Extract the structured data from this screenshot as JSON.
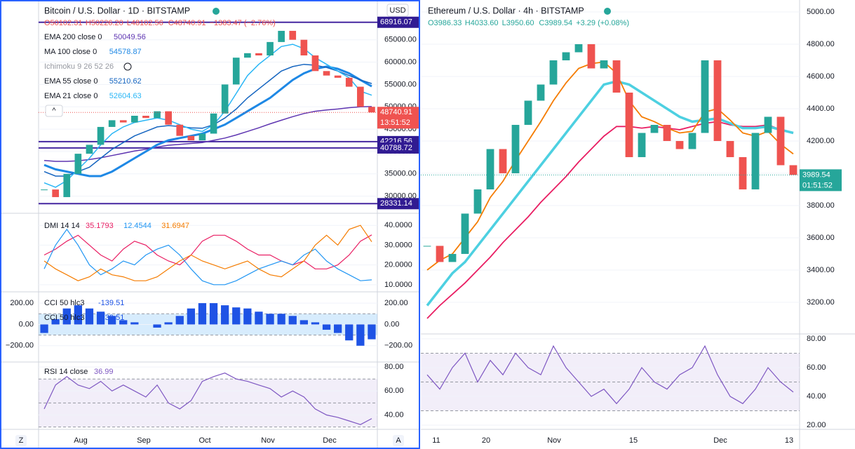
{
  "left": {
    "title": "Bitcoin / U.S. Dollar · 1D · BITSTAMP",
    "currency": "USD",
    "ohlc": [
      "O50102.31",
      "H50226.20",
      "L48102.56",
      "C48740.91",
      "−1383.47 (−2.76%)"
    ],
    "price": {
      "ylim": [
        26180,
        73900
      ],
      "yticks": [
        {
          "value": 30000,
          "label": "30000.00"
        },
        {
          "value": 35000,
          "label": "35000.00"
        },
        {
          "value": 40000,
          "label": "40000.00"
        },
        {
          "value": 45000,
          "label": "45000.00"
        },
        {
          "value": 50000,
          "label": "50000.00"
        },
        {
          "value": 55000,
          "label": "55000.00"
        },
        {
          "value": 60000,
          "label": "60000.00"
        },
        {
          "value": 65000,
          "label": "65000.00"
        }
      ],
      "close": [
        31500,
        29800,
        35000,
        39500,
        41500,
        45500,
        47000,
        46500,
        48000,
        47500,
        49000,
        46000,
        43500,
        42500,
        44000,
        48500,
        55000,
        61000,
        62000,
        61500,
        64500,
        67000,
        65000,
        61500,
        58000,
        57000,
        56500,
        54500,
        50000,
        48740.91
      ],
      "countdown": "13:51:52",
      "levels": [
        68916.07,
        42216.56,
        40788.72,
        28331.14
      ],
      "ichimoku": "Ichimoku 9 26 52 26",
      "series": [
        {
          "name": "EMA 200 close 0",
          "color": "#5e35b1",
          "values": [
            38000,
            37800,
            37800,
            37900,
            38200,
            38600,
            39100,
            39600,
            40100,
            40500,
            41000,
            41400,
            41600,
            41800,
            42000,
            42500,
            43000,
            43700,
            44500,
            45300,
            46200,
            47000,
            47800,
            48500,
            49000,
            49300,
            49500,
            49800,
            50000,
            50049.56
          ]
        },
        {
          "name": "MA 100 close 0",
          "color": "#1e88e5",
          "values": [
            37000,
            36000,
            35500,
            35000,
            34500,
            34500,
            35500,
            37000,
            38500,
            40000,
            41500,
            42500,
            43000,
            43500,
            44000,
            45000,
            46000,
            47500,
            49000,
            50500,
            52000,
            54000,
            56000,
            57500,
            58500,
            59000,
            58500,
            57500,
            56000,
            54578.87
          ]
        },
        {
          "name": "EMA 55 close 0",
          "color": "#1565c0",
          "values": [
            35500,
            34500,
            34500,
            35500,
            36500,
            38500,
            40500,
            42000,
            43500,
            44500,
            45500,
            45800,
            45600,
            45300,
            45200,
            46000,
            47500,
            49500,
            52000,
            54000,
            56000,
            58000,
            59000,
            59500,
            59300,
            58800,
            58000,
            57000,
            56000,
            55210.62
          ]
        },
        {
          "name": "EMA 21 close 0",
          "color": "#29b6f6",
          "values": [
            33000,
            32000,
            33500,
            36000,
            38500,
            41500,
            44000,
            45500,
            46500,
            47000,
            47500,
            47000,
            46000,
            45000,
            44500,
            46000,
            49000,
            53000,
            57000,
            59500,
            61500,
            63500,
            64000,
            63000,
            61000,
            59500,
            58000,
            56500,
            53500,
            52604.63
          ]
        }
      ]
    },
    "dmi": {
      "name": "DMI 14 14",
      "ylim": [
        6.4,
        45.4
      ],
      "yticks": [
        {
          "value": 10,
          "label": "10.0000"
        },
        {
          "value": 20,
          "label": "20.0000"
        },
        {
          "value": 30,
          "label": "30.0000"
        },
        {
          "value": 40,
          "label": "40.0000"
        }
      ],
      "series": [
        {
          "color": "#e91e63",
          "values": [
            25,
            28,
            32,
            35,
            30,
            25,
            22,
            28,
            32,
            30,
            25,
            22,
            20,
            25,
            32,
            35,
            35,
            32,
            28,
            25,
            25,
            22,
            20,
            22,
            18,
            18,
            20,
            25,
            32,
            35.1793
          ]
        },
        {
          "color": "#2196f3",
          "values": [
            18,
            30,
            38,
            30,
            20,
            15,
            18,
            22,
            20,
            25,
            28,
            30,
            25,
            18,
            12,
            10,
            10,
            12,
            15,
            18,
            20,
            22,
            20,
            25,
            28,
            22,
            18,
            15,
            12,
            12.4544
          ]
        },
        {
          "color": "#f57c00",
          "values": [
            22,
            18,
            15,
            12,
            14,
            18,
            15,
            14,
            12,
            12,
            14,
            18,
            22,
            25,
            22,
            20,
            18,
            20,
            22,
            18,
            15,
            14,
            18,
            22,
            30,
            35,
            30,
            38,
            40,
            31.6947
          ]
        }
      ]
    },
    "cci": {
      "name": "CCI 50 hlc3",
      "color": "#1e53e5",
      "ylim": [
        -353,
        293
      ],
      "levels": [
        100,
        -100
      ],
      "yticks": [
        {
          "value": 200,
          "label": "200.00"
        },
        {
          "value": 0,
          "label": "0.00"
        },
        {
          "value": -200,
          "label": "−200.00"
        }
      ],
      "values": [
        -80,
        50,
        150,
        180,
        150,
        120,
        80,
        40,
        20,
        0,
        -30,
        20,
        80,
        150,
        200,
        200,
        180,
        160,
        150,
        120,
        100,
        100,
        80,
        40,
        20,
        -50,
        -80,
        -150,
        -200,
        -139.51
      ]
    },
    "rsi": {
      "name": "RSI 14 close",
      "color": "#7e57c2",
      "ylim": [
        28,
        83
      ],
      "levels": [
        70,
        50,
        30
      ],
      "yticks": [
        {
          "value": 40,
          "label": "40.00"
        },
        {
          "value": 60,
          "label": "60.00"
        },
        {
          "value": 80,
          "label": "80.00"
        }
      ],
      "values": [
        45,
        65,
        72,
        65,
        62,
        68,
        60,
        65,
        60,
        55,
        65,
        50,
        45,
        52,
        68,
        72,
        75,
        70,
        68,
        65,
        62,
        55,
        60,
        55,
        45,
        40,
        38,
        35,
        32,
        36.99
      ]
    },
    "xticks": [
      "Aug",
      "Sep",
      "Oct",
      "Nov",
      "Dec"
    ],
    "buttons": [
      "Z",
      "A"
    ]
  },
  "right": {
    "title": "Ethereum / U.S. Dollar · 4h · BITSTAMP",
    "ohlc": [
      "O3986.33",
      "H4033.60",
      "L3950.60",
      "C3989.54",
      "+3.29 (+0.08%)"
    ],
    "price": {
      "ylim": [
        3004,
        5074
      ],
      "yticks": [
        {
          "value": 3200,
          "label": "3200.00"
        },
        {
          "value": 3400,
          "label": "3400.00"
        },
        {
          "value": 3600,
          "label": "3600.00"
        },
        {
          "value": 3800,
          "label": "3800.00"
        },
        {
          "value": 4000,
          "label": "4000.00"
        },
        {
          "value": 4200,
          "label": "4200.00"
        },
        {
          "value": 4400,
          "label": "4400.00"
        },
        {
          "value": 4600,
          "label": "4600.00"
        },
        {
          "value": 4800,
          "label": "4800.00"
        },
        {
          "value": 5000,
          "label": "5000.00"
        }
      ],
      "close": [
        3550,
        3450,
        3500,
        3750,
        3900,
        4150,
        4000,
        4300,
        4450,
        4550,
        4700,
        4750,
        4800,
        4650,
        4700,
        4500,
        4100,
        4250,
        4300,
        4200,
        4150,
        4250,
        4700,
        4200,
        4100,
        3900,
        4250,
        4350,
        4050,
        3989.54
      ],
      "countdown": "01:51:52",
      "series": [
        {
          "color": "#e91e63",
          "values": [
            3100,
            3180,
            3250,
            3320,
            3400,
            3480,
            3570,
            3650,
            3730,
            3820,
            3900,
            3980,
            4070,
            4150,
            4230,
            4290,
            4290,
            4280,
            4290,
            4280,
            4270,
            4290,
            4310,
            4320,
            4300,
            4290,
            4290,
            4300,
            4270,
            4250
          ]
        },
        {
          "color": "#4dd0e1",
          "values": [
            3180,
            3280,
            3380,
            3450,
            3550,
            3650,
            3750,
            3850,
            3950,
            4050,
            4150,
            4250,
            4350,
            4450,
            4550,
            4570,
            4550,
            4500,
            4450,
            4400,
            4350,
            4320,
            4330,
            4340,
            4310,
            4280,
            4280,
            4290,
            4270,
            4250
          ]
        },
        {
          "color": "#f57c00",
          "values": [
            3400,
            3460,
            3500,
            3600,
            3700,
            3850,
            3950,
            4080,
            4200,
            4320,
            4450,
            4560,
            4650,
            4680,
            4690,
            4620,
            4450,
            4350,
            4320,
            4280,
            4250,
            4260,
            4380,
            4400,
            4330,
            4250,
            4230,
            4260,
            4180,
            4120
          ]
        }
      ]
    },
    "rsi": {
      "color": "#7e57c2",
      "ylim": [
        17.1,
        82.4
      ],
      "levels": [
        70,
        50,
        30
      ],
      "yticks": [
        {
          "value": 20,
          "label": "20.00"
        },
        {
          "value": 40,
          "label": "40.00"
        },
        {
          "value": 60,
          "label": "60.00"
        },
        {
          "value": 80,
          "label": "80.00"
        }
      ],
      "values": [
        55,
        45,
        60,
        70,
        50,
        65,
        55,
        70,
        60,
        55,
        75,
        60,
        50,
        40,
        45,
        35,
        45,
        60,
        50,
        45,
        55,
        60,
        75,
        55,
        40,
        35,
        45,
        60,
        50,
        43
      ]
    },
    "xticks": [
      "11",
      "20",
      "Nov",
      "15",
      "Dec",
      "13"
    ]
  }
}
